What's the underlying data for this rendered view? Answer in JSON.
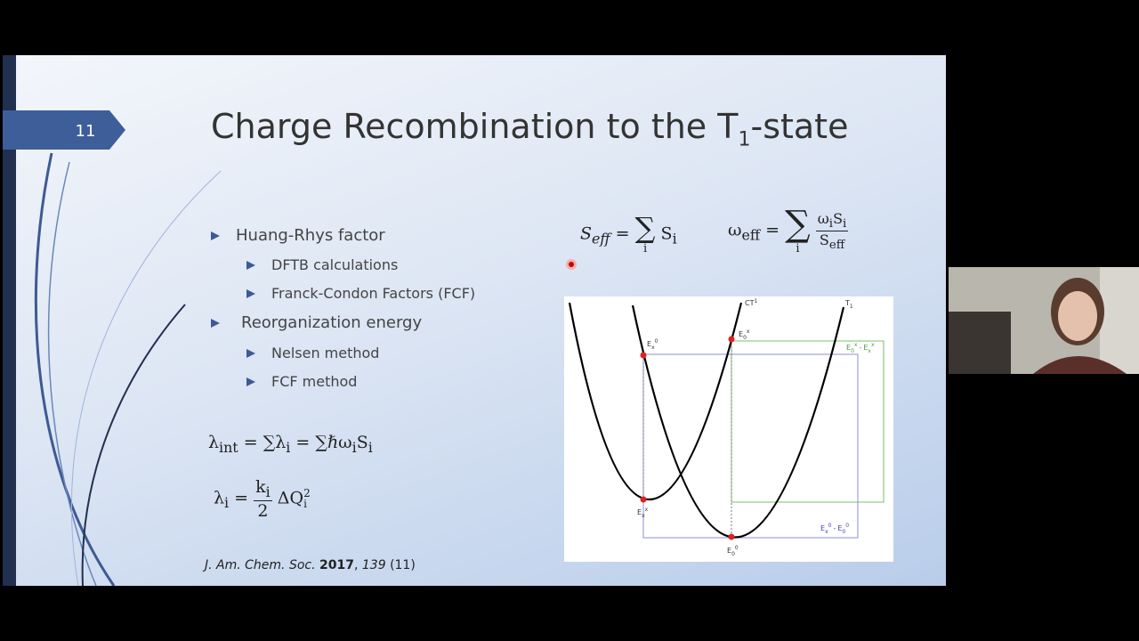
{
  "slide": {
    "number": "11",
    "title": {
      "text": "Charge Recombination to the T",
      "sub": "1",
      "suffix": "-state"
    },
    "bullets": [
      {
        "text": "Huang-Rhys factor",
        "children": [
          "DFTB calculations",
          "Franck-Condon Factors (FCF)"
        ]
      },
      {
        "text": "Reorganization energy",
        "children": [
          "Nelsen method",
          "FCF method"
        ]
      }
    ],
    "formulas": {
      "seff": {
        "lhs": "S",
        "lhs_sub": "eff",
        "eq": "=",
        "sum": "∑",
        "index": "i",
        "term": "S",
        "term_sub": "i"
      },
      "weff": {
        "lhs": "ω",
        "lhs_sub": "eff",
        "eq": "=",
        "sum": "∑",
        "index": "i",
        "num": [
          "ω",
          "i",
          "S",
          "i"
        ],
        "den": [
          "S",
          "eff"
        ]
      },
      "lint": [
        "λ",
        "int",
        "=",
        "∑λ",
        "i",
        "=",
        "∑ℏω",
        "i",
        "S",
        "i"
      ],
      "li": {
        "lhs": "λ",
        "lhs_sub": "i",
        "eq": "=",
        "num": [
          "k",
          "i"
        ],
        "den": "2",
        "term": "ΔQ",
        "term_sub": "i",
        "term_sup": "2"
      }
    },
    "citation": {
      "journal": "J. Am. Chem. Soc.",
      "year": "2017",
      "sep": ",",
      "volume": "139",
      "issue": "(11)"
    },
    "diagram": {
      "curves": [
        {
          "label": "CT",
          "sup": "1"
        },
        {
          "label": "T",
          "sub": "1"
        }
      ],
      "points": [
        {
          "base": "E",
          "sub": "x",
          "sup": "0"
        },
        {
          "base": "E",
          "sub": "0",
          "sup": "x"
        },
        {
          "base": "E",
          "sub": "x",
          "sup": "x"
        },
        {
          "base": "E",
          "sub": "0",
          "sup": "0"
        }
      ],
      "gaps": [
        {
          "a": {
            "base": "E",
            "sub": "0",
            "sup": "x"
          },
          "op": "-",
          "b": {
            "base": "E",
            "sub": "x",
            "sup": "x"
          }
        },
        {
          "a": {
            "base": "E",
            "sub": "x",
            "sup": "0"
          },
          "op": "-",
          "b": {
            "base": "E",
            "sub": "0",
            "sup": "0"
          }
        }
      ]
    }
  }
}
